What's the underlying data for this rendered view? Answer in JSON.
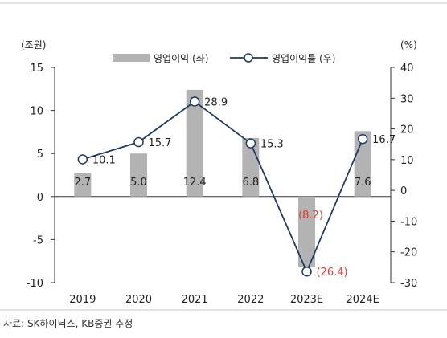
{
  "source": "자료: SK하이닉스, KB증권 추정",
  "chart_data": {
    "type": "bar",
    "categories": [
      "2019",
      "2020",
      "2021",
      "2022",
      "2023E",
      "2024E"
    ],
    "left_axis": {
      "unit_label": "(조원)",
      "ylim": [
        -10,
        15
      ],
      "ticks": [
        15,
        10,
        5,
        0,
        -5,
        -10
      ]
    },
    "right_axis": {
      "unit_label": "(%)",
      "ylim": [
        -30,
        40
      ],
      "ticks": [
        40,
        30,
        20,
        10,
        0,
        -10,
        -20,
        -30
      ]
    },
    "series": [
      {
        "name": "영업이익 (좌)",
        "type": "bar",
        "axis": "left",
        "color": "#b3b3b3",
        "values": [
          2.7,
          5.0,
          12.4,
          6.8,
          -8.2,
          7.6
        ],
        "labels": [
          "2.7",
          "5.0",
          "12.4",
          "6.8",
          "(8.2)",
          "7.6"
        ]
      },
      {
        "name": "영업이익률 (우)",
        "type": "line",
        "axis": "right",
        "color": "#1f3a63",
        "values": [
          10.1,
          15.7,
          28.9,
          15.3,
          -26.4,
          16.7
        ],
        "labels": [
          "10.1",
          "15.7",
          "28.9",
          "15.3",
          "(26.4)",
          "16.7"
        ]
      }
    ],
    "negative_label_color": "#e03c31",
    "legend_position": "top"
  }
}
